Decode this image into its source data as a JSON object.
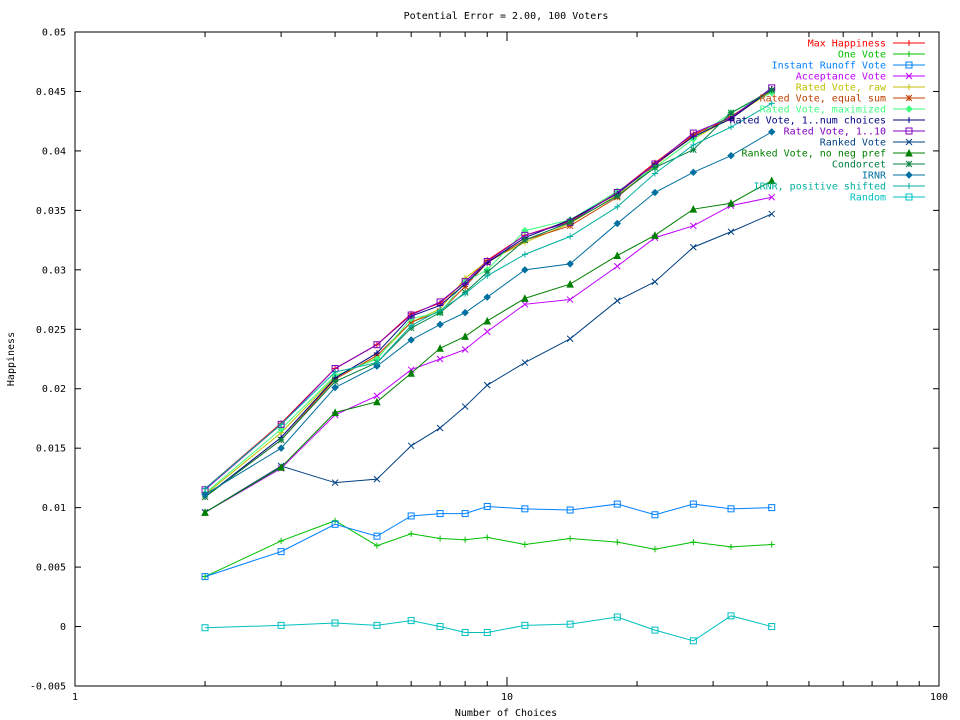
{
  "chart_data": {
    "type": "line",
    "title": "Potential Error = 2.00, 100 Voters",
    "xlabel": "Number of Choices",
    "ylabel": "Happiness",
    "x_scale": "log",
    "xlim": [
      1,
      100
    ],
    "ylim": [
      -0.005,
      0.05
    ],
    "grid": false,
    "legend_position": "top-right",
    "x_ticks": [
      {
        "v": 1,
        "label": "1"
      },
      {
        "v": 10,
        "label": "10"
      },
      {
        "v": 100,
        "label": "100"
      }
    ],
    "y_ticks": [
      {
        "v": -0.005,
        "label": "-0.005"
      },
      {
        "v": 0,
        "label": "0"
      },
      {
        "v": 0.005,
        "label": "0.005"
      },
      {
        "v": 0.01,
        "label": "0.01"
      },
      {
        "v": 0.015,
        "label": "0.015"
      },
      {
        "v": 0.02,
        "label": "0.02"
      },
      {
        "v": 0.025,
        "label": "0.025"
      },
      {
        "v": 0.03,
        "label": "0.03"
      },
      {
        "v": 0.035,
        "label": "0.035"
      },
      {
        "v": 0.04,
        "label": "0.04"
      },
      {
        "v": 0.045,
        "label": "0.045"
      },
      {
        "v": 0.05,
        "label": "0.05"
      }
    ],
    "x": [
      2,
      3,
      4,
      5,
      6,
      7,
      8,
      9,
      11,
      14,
      18,
      22,
      27,
      33,
      41
    ],
    "series": [
      {
        "name": "Max Happiness",
        "color": "#ff0000",
        "marker": "plus",
        "values": [
          0.0116,
          0.0171,
          0.0217,
          0.0237,
          0.0263,
          0.0272,
          0.029,
          0.0308,
          0.0329,
          0.0341,
          0.0365,
          0.039,
          0.0414,
          0.0427,
          0.0452
        ]
      },
      {
        "name": "One Vote",
        "color": "#00c000",
        "marker": "plus",
        "values": [
          0.0042,
          0.0072,
          0.0089,
          0.0068,
          0.0078,
          0.0074,
          0.0073,
          0.0075,
          0.0069,
          0.0074,
          0.0071,
          0.0065,
          0.0071,
          0.0067,
          0.0069
        ]
      },
      {
        "name": "Instant Runoff Vote",
        "color": "#0080ff",
        "marker": "square",
        "values": [
          0.0042,
          0.0063,
          0.0086,
          0.0076,
          0.0093,
          0.0095,
          0.0095,
          0.0101,
          0.0099,
          0.0098,
          0.0103,
          0.0094,
          0.0103,
          0.0099,
          0.01
        ]
      },
      {
        "name": "Acceptance Vote",
        "color": "#c000ff",
        "marker": "x",
        "values": [
          0.0096,
          0.0133,
          0.0178,
          0.0194,
          0.0216,
          0.0225,
          0.0233,
          0.0248,
          0.0271,
          0.0275,
          0.0303,
          0.0327,
          0.0337,
          0.0354,
          0.0361
        ]
      },
      {
        "name": "Rated Vote, raw",
        "color": "#c0c000",
        "marker": "plus",
        "values": [
          0.0111,
          0.0163,
          0.021,
          0.0226,
          0.0256,
          0.0267,
          0.0293,
          0.0307,
          0.0323,
          0.0339,
          0.0363,
          0.0386,
          0.041,
          0.0428,
          0.045
        ]
      },
      {
        "name": "Rated Vote, equal sum",
        "color": "#c04000",
        "marker": "star",
        "values": [
          0.0109,
          0.0157,
          0.0208,
          0.0228,
          0.0256,
          0.0265,
          0.0286,
          0.0306,
          0.0325,
          0.0337,
          0.0361,
          0.0388,
          0.0413,
          0.0429,
          0.0451
        ]
      },
      {
        "name": "Rated Vote, maximized",
        "color": "#40ff80",
        "marker": "diamond",
        "values": [
          0.0112,
          0.0166,
          0.0211,
          0.0225,
          0.0259,
          0.0264,
          0.029,
          0.03,
          0.0333,
          0.0342,
          0.0366,
          0.0386,
          0.041,
          0.0432,
          0.0449
        ]
      },
      {
        "name": "Rated Vote, 1..num choices",
        "color": "#000080",
        "marker": "plus",
        "values": [
          0.0109,
          0.0159,
          0.0209,
          0.023,
          0.0261,
          0.027,
          0.0288,
          0.0306,
          0.0327,
          0.0342,
          0.0364,
          0.0389,
          0.0412,
          0.0427,
          0.0452
        ]
      },
      {
        "name": "Rated Vote, 1..10",
        "color": "#8000c0",
        "marker": "square",
        "values": [
          0.0115,
          0.017,
          0.0217,
          0.0237,
          0.0262,
          0.0273,
          0.029,
          0.0307,
          0.0329,
          0.034,
          0.0365,
          0.0389,
          0.0415,
          0.0428,
          0.0453
        ]
      },
      {
        "name": "Ranked Vote",
        "color": "#004080",
        "marker": "x",
        "values": [
          0.0096,
          0.0135,
          0.0121,
          0.0124,
          0.0152,
          0.0167,
          0.0185,
          0.0203,
          0.0222,
          0.0242,
          0.0274,
          0.029,
          0.0319,
          0.0332,
          0.0347
        ]
      },
      {
        "name": "Ranked Vote, no neg pref",
        "color": "#008000",
        "marker": "triangle",
        "values": [
          0.0096,
          0.0134,
          0.018,
          0.0189,
          0.0213,
          0.0234,
          0.0244,
          0.0257,
          0.0276,
          0.0288,
          0.0312,
          0.0329,
          0.0351,
          0.0356,
          0.0375
        ]
      },
      {
        "name": "Condorcet",
        "color": "#008040",
        "marker": "star",
        "values": [
          0.0109,
          0.0157,
          0.0206,
          0.0222,
          0.0251,
          0.0264,
          0.0281,
          0.0298,
          0.0325,
          0.034,
          0.0362,
          0.0386,
          0.0401,
          0.0432,
          0.0451
        ]
      },
      {
        "name": "IRNR",
        "color": "#0070a0",
        "marker": "diamond",
        "values": [
          0.0111,
          0.015,
          0.0201,
          0.0219,
          0.0241,
          0.0254,
          0.0264,
          0.0277,
          0.03,
          0.0305,
          0.0339,
          0.0365,
          0.0382,
          0.0396,
          0.0416
        ]
      },
      {
        "name": "IRNR, positive shifted",
        "color": "#00b0a0",
        "marker": "plus",
        "values": [
          0.0116,
          0.017,
          0.0214,
          0.0222,
          0.0253,
          0.0266,
          0.028,
          0.0295,
          0.0313,
          0.0328,
          0.0353,
          0.0381,
          0.0405,
          0.042,
          0.044
        ]
      },
      {
        "name": "Random",
        "color": "#00c0c0",
        "marker": "square",
        "values": [
          -0.0001,
          0.0001,
          0.0003,
          0.0001,
          0.0005,
          0.0,
          -0.0005,
          -0.0005,
          0.0001,
          0.0002,
          0.0008,
          -0.0003,
          -0.0012,
          0.0009,
          0.0
        ]
      }
    ]
  }
}
